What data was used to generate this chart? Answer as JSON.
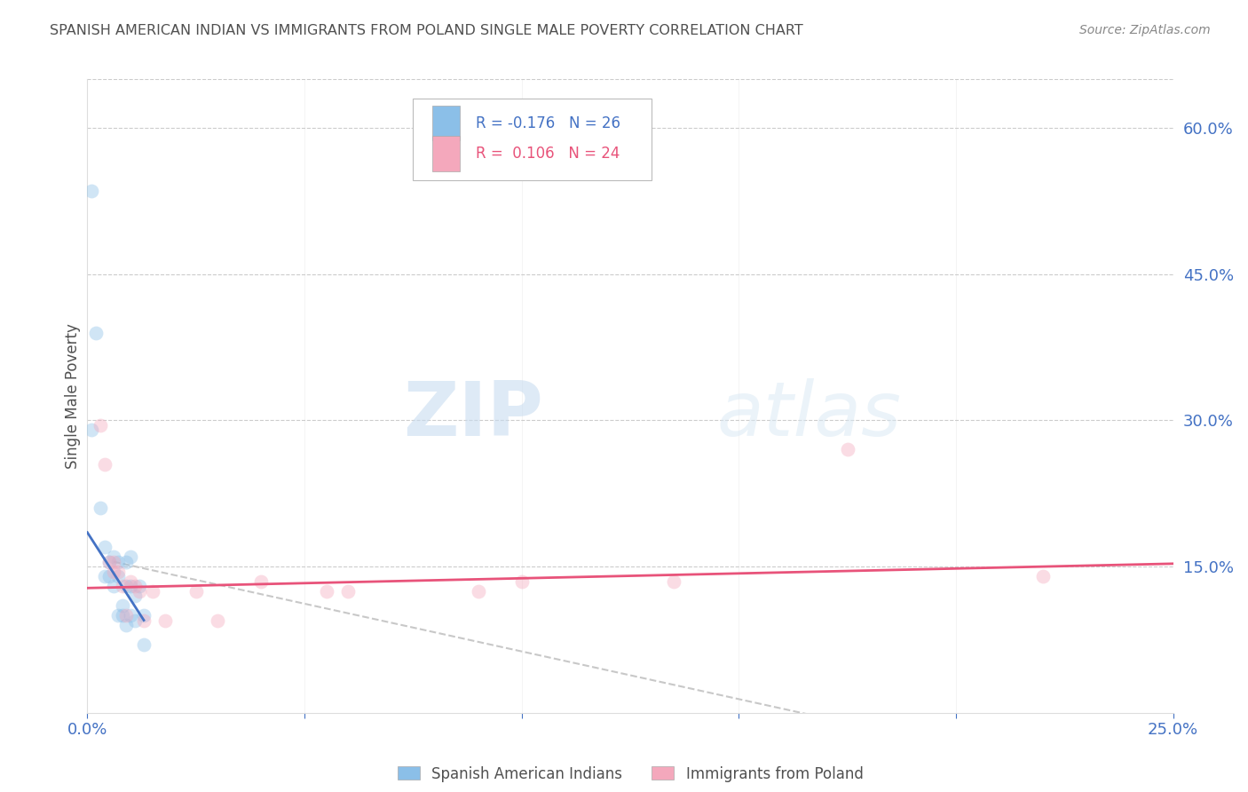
{
  "title": "SPANISH AMERICAN INDIAN VS IMMIGRANTS FROM POLAND SINGLE MALE POVERTY CORRELATION CHART",
  "source": "Source: ZipAtlas.com",
  "ylabel_left": "Single Male Poverty",
  "y_tick_values_right": [
    0.15,
    0.3,
    0.45,
    0.6
  ],
  "xlim": [
    0.0,
    0.25
  ],
  "ylim": [
    0.0,
    0.65
  ],
  "legend_blue_R": "-0.176",
  "legend_blue_N": "26",
  "legend_pink_R": "0.106",
  "legend_pink_N": "24",
  "legend_label_blue": "Spanish American Indians",
  "legend_label_pink": "Immigrants from Poland",
  "blue_scatter_x": [
    0.001,
    0.002,
    0.003,
    0.004,
    0.004,
    0.005,
    0.005,
    0.006,
    0.006,
    0.007,
    0.007,
    0.007,
    0.008,
    0.008,
    0.009,
    0.009,
    0.009,
    0.01,
    0.01,
    0.01,
    0.011,
    0.011,
    0.012,
    0.013,
    0.013,
    0.001
  ],
  "blue_scatter_y": [
    0.535,
    0.39,
    0.21,
    0.17,
    0.14,
    0.155,
    0.14,
    0.16,
    0.13,
    0.155,
    0.14,
    0.1,
    0.11,
    0.1,
    0.155,
    0.13,
    0.09,
    0.16,
    0.13,
    0.1,
    0.095,
    0.12,
    0.13,
    0.1,
    0.07,
    0.29
  ],
  "pink_scatter_x": [
    0.003,
    0.004,
    0.005,
    0.006,
    0.006,
    0.007,
    0.008,
    0.009,
    0.01,
    0.011,
    0.012,
    0.013,
    0.015,
    0.018,
    0.025,
    0.03,
    0.04,
    0.055,
    0.06,
    0.09,
    0.1,
    0.135,
    0.175,
    0.22
  ],
  "pink_scatter_y": [
    0.295,
    0.255,
    0.155,
    0.155,
    0.145,
    0.145,
    0.13,
    0.1,
    0.135,
    0.13,
    0.125,
    0.095,
    0.125,
    0.095,
    0.125,
    0.095,
    0.135,
    0.125,
    0.125,
    0.125,
    0.135,
    0.135,
    0.27,
    0.14
  ],
  "blue_line_x": [
    0.0,
    0.013
  ],
  "blue_line_y": [
    0.185,
    0.095
  ],
  "pink_line_x": [
    0.0,
    0.25
  ],
  "pink_line_y": [
    0.128,
    0.153
  ],
  "dashed_line_x": [
    0.006,
    0.195
  ],
  "dashed_line_y": [
    0.155,
    -0.03
  ],
  "watermark_zip": "ZIP",
  "watermark_atlas": "atlas",
  "scatter_size": 130,
  "scatter_alpha": 0.4,
  "blue_color": "#8BBFE8",
  "pink_color": "#F4A8BC",
  "blue_line_color": "#4472C4",
  "pink_line_color": "#E8537A",
  "dashed_line_color": "#C8C8C8",
  "bg_color": "#FFFFFF",
  "grid_color": "#CCCCCC",
  "axis_label_color": "#4472C4",
  "title_color": "#505050"
}
